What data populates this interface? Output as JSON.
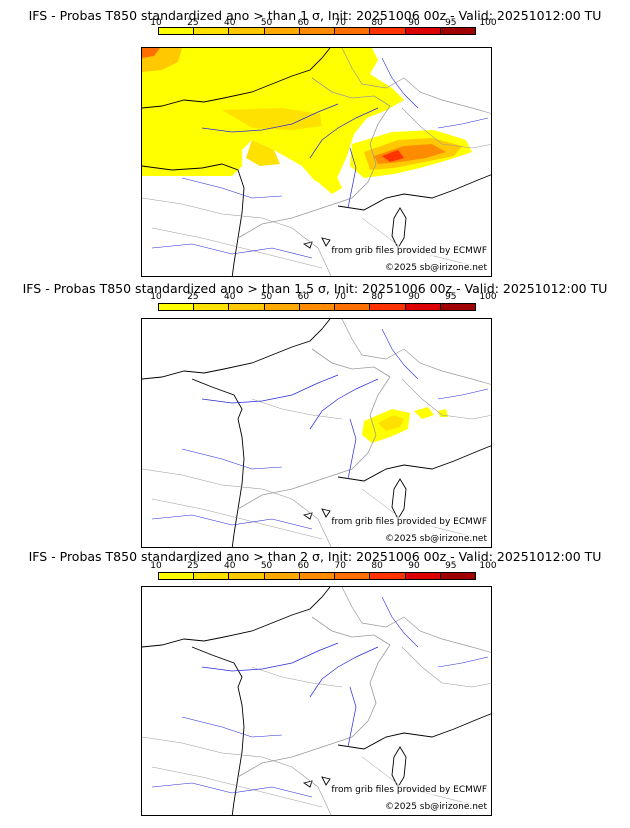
{
  "panels": [
    {
      "title": "IFS - Probas T850  standardized ano > than 1 σ, Init: 20251006 00z - Valid: 20251012:00 TU",
      "threshold": "1"
    },
    {
      "title": "IFS - Probas T850  standardized ano > than 1.5 σ, Init: 20251006 00z - Valid: 20251012:00 TU",
      "threshold": "1.5"
    },
    {
      "title": "IFS - Probas T850  standardized ano > than 2 σ, Init: 20251006 00z - Valid: 20251012:00 TU",
      "threshold": "2"
    }
  ],
  "legend": {
    "labels": [
      "10",
      "25",
      "40",
      "50",
      "60",
      "70",
      "80",
      "90",
      "95",
      "100"
    ],
    "colors": [
      "#ffff00",
      "#ffe100",
      "#ffc800",
      "#ffaa00",
      "#ff8c00",
      "#ff6e00",
      "#ff3200",
      "#dc0000",
      "#a00000",
      "#6e0000"
    ]
  },
  "credits": {
    "grib": "from grib files provided by ECMWF",
    "copyright": "©2025 sb@irizone.net"
  },
  "colors": {
    "coast": "#000000",
    "borders": "#9a9a9a",
    "rivers": "#2a2adc"
  }
}
